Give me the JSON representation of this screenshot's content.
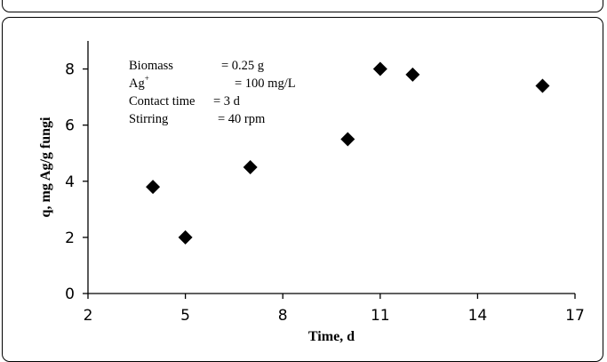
{
  "chart_data": {
    "type": "scatter",
    "xlabel": "Time, d",
    "ylabel": "q, mg Ag/g fungi",
    "xlim": [
      2,
      17
    ],
    "ylim": [
      0,
      9
    ],
    "xticks": [
      2,
      5,
      8,
      11,
      14,
      17
    ],
    "yticks": [
      0,
      2,
      4,
      6,
      8
    ],
    "grid": false,
    "marker": "diamond",
    "marker_color": "#000000",
    "points": [
      {
        "x": 4,
        "y": 3.8
      },
      {
        "x": 5,
        "y": 2.0
      },
      {
        "x": 7,
        "y": 4.5
      },
      {
        "x": 10,
        "y": 5.5
      },
      {
        "x": 11,
        "y": 8.0
      },
      {
        "x": 12,
        "y": 7.8
      },
      {
        "x": 16,
        "y": 7.4
      }
    ],
    "annotations": [
      {
        "label": "Biomass",
        "value": "= 0.25 g"
      },
      {
        "label": "Ag",
        "superscript": "+",
        "value": "= 100 mg/L"
      },
      {
        "label": "Contact time",
        "value": "= 3 d"
      },
      {
        "label": "Stirring",
        "value": "= 40 rpm"
      }
    ]
  }
}
